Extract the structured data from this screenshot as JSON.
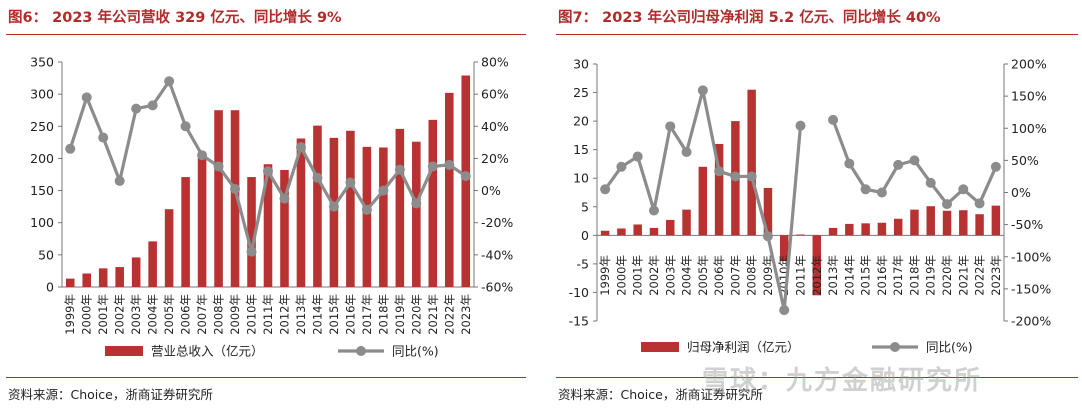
{
  "figures": [
    {
      "title": "图6：   2023 年公司营收 329 亿元、同比增长 9%",
      "source": "资料来源：Choice，浙商证券研究所"
    },
    {
      "title": "图7：   2023 年公司归母净利润 5.2 亿元、同比增长 40%",
      "source": "资料来源：Choice，浙商证券研究所"
    }
  ],
  "watermark": "雪球：九方金融研究所",
  "colors": {
    "bar": "#b83232",
    "line": "#8c8c8c",
    "accent": "#b22b2b"
  },
  "chart_data": [
    {
      "type": "bar",
      "categories": [
        "1999年",
        "2000年",
        "2001年",
        "2002年",
        "2003年",
        "2004年",
        "2005年",
        "2006年",
        "2007年",
        "2008年",
        "2009年",
        "2010年",
        "2011年",
        "2012年",
        "2013年",
        "2014年",
        "2015年",
        "2016年",
        "2017年",
        "2018年",
        "2019年",
        "2020年",
        "2021年",
        "2022年",
        "2023年"
      ],
      "series": [
        {
          "name": "营业总收入（亿元）",
          "type": "bar",
          "axis": "left",
          "values": [
            13,
            21,
            29,
            31,
            46,
            71,
            121,
            171,
            207,
            275,
            275,
            171,
            191,
            182,
            231,
            251,
            232,
            243,
            218,
            217,
            246,
            226,
            260,
            302,
            329
          ]
        },
        {
          "name": "同比(%)",
          "type": "line",
          "axis": "right",
          "values": [
            26,
            58,
            33,
            6,
            51,
            53,
            68,
            40,
            22,
            15,
            1,
            -38,
            12,
            -5,
            27,
            8,
            -10,
            5,
            -12,
            0,
            13,
            -8,
            15,
            16,
            9
          ]
        }
      ],
      "yticks_left": [
        "0",
        "50",
        "100",
        "150",
        "200",
        "250",
        "300",
        "350"
      ],
      "yticks_right": [
        "-60%",
        "-40%",
        "-20%",
        "0%",
        "20%",
        "40%",
        "60%",
        "80%"
      ],
      "ylim_left": [
        0,
        350
      ],
      "ylim_right": [
        -60,
        80
      ],
      "legend": [
        "营业总收入（亿元）",
        "同比(%)"
      ],
      "legend_position": "bottom",
      "grid": false
    },
    {
      "type": "bar",
      "categories": [
        "1999年",
        "2000年",
        "2001年",
        "2002年",
        "2003年",
        "2004年",
        "2005年",
        "2006年",
        "2007年",
        "2008年",
        "2009年",
        "2010年",
        "2011年",
        "2012年",
        "2013年",
        "2014年",
        "2015年",
        "2016年",
        "2017年",
        "2018年",
        "2019年",
        "2020年",
        "2021年",
        "2022年",
        "2023年"
      ],
      "series": [
        {
          "name": "归母净利润（亿元）",
          "type": "bar",
          "axis": "left",
          "values": [
            0.8,
            1.2,
            1.9,
            1.3,
            2.7,
            4.5,
            12,
            16,
            20,
            25.5,
            8.3,
            -4.5,
            0.15,
            -10.5,
            1.3,
            2,
            2.1,
            2.2,
            2.9,
            4.5,
            5.1,
            4.3,
            4.4,
            3.7,
            5.2
          ]
        },
        {
          "name": "同比(%)",
          "type": "line",
          "axis": "right",
          "values": [
            5,
            40,
            56,
            -28,
            103,
            63,
            159,
            33,
            25,
            25,
            -68,
            -183,
            104,
            null,
            113,
            45,
            5,
            0,
            43,
            50,
            15,
            -18,
            5,
            -17,
            40
          ]
        }
      ],
      "yticks_left": [
        "-15",
        "-10",
        "-5",
        "0",
        "5",
        "10",
        "15",
        "20",
        "25",
        "30"
      ],
      "yticks_right": [
        "-200%",
        "-150%",
        "-100%",
        "-50%",
        "0%",
        "50%",
        "100%",
        "150%",
        "200%"
      ],
      "ylim_left": [
        -15,
        30
      ],
      "ylim_right": [
        -200,
        200
      ],
      "legend": [
        "归母净利润（亿元）",
        "同比(%)"
      ],
      "legend_position": "bottom",
      "grid": false
    }
  ]
}
